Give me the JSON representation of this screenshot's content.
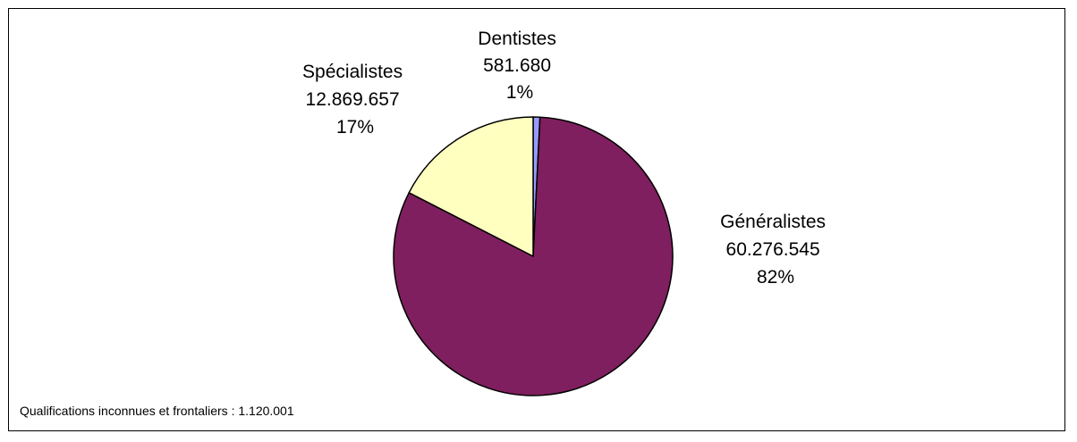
{
  "chart_data": {
    "type": "pie",
    "slices": [
      {
        "name": "Dentistes",
        "value": 581680,
        "value_label": "581.680",
        "percent_label": "1%",
        "color": "#9999ff"
      },
      {
        "name": "Généralistes",
        "value": 60276545,
        "value_label": "60.276.545",
        "percent_label": "82%",
        "color": "#7f1f5f"
      },
      {
        "name": "Spécialistes",
        "value": 12869657,
        "value_label": "12.869.657",
        "percent_label": "17%",
        "color": "#ffffc0"
      }
    ],
    "start_angle_deg": 0,
    "direction": "clockwise",
    "slice_border_color": "#000000",
    "footnote": "Qualifications inconnues et frontaliers : 1.120.001"
  }
}
